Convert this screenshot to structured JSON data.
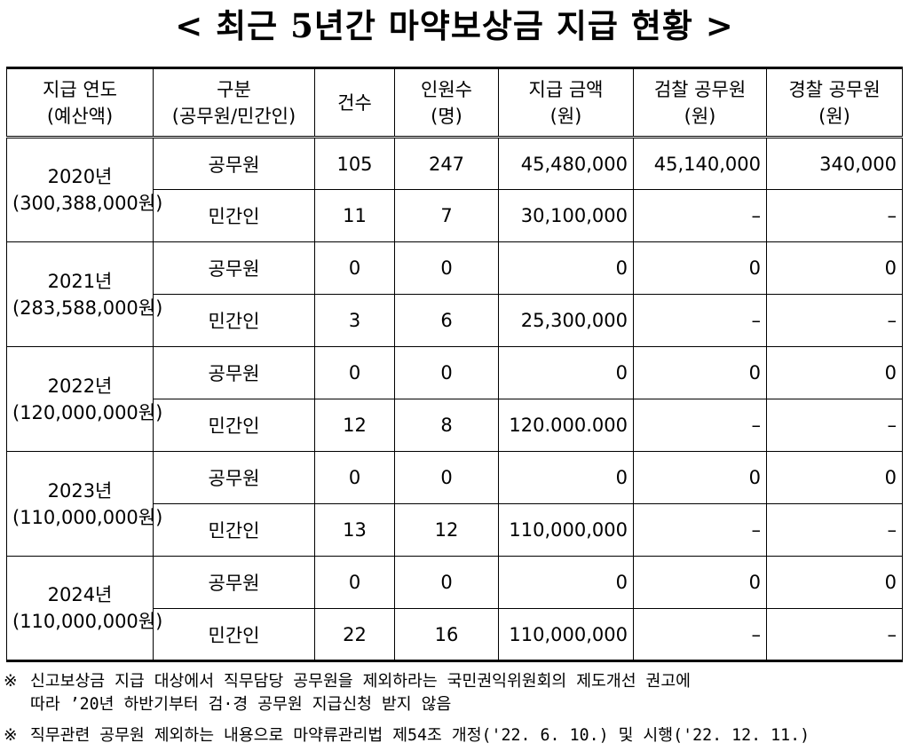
{
  "title": "< 최근 5년간 마약보상금 지급 현황 >",
  "headers": [
    {
      "line1": "지급 연도",
      "line2": "(예산액)"
    },
    {
      "line1": "구분",
      "line2": "(공무원/민간인)"
    },
    {
      "line1": "건수",
      "line2": ""
    },
    {
      "line1": "인원수",
      "line2": "(명)"
    },
    {
      "line1": "지급 금액",
      "line2": "(원)"
    },
    {
      "line1": "검찰 공무원",
      "line2": "(원)"
    },
    {
      "line1": "경찰 공무원",
      "line2": "(원)"
    }
  ],
  "years": [
    {
      "year": "2020년",
      "budget": "(300,388,000원)",
      "rows": [
        {
          "type": "공무원",
          "cases": "105",
          "people": "247",
          "amount": "45,480,000",
          "prosecution": "45,140,000",
          "police": "340,000"
        },
        {
          "type": "민간인",
          "cases": "11",
          "people": "7",
          "amount": "30,100,000",
          "prosecution": "–",
          "police": "–"
        }
      ]
    },
    {
      "year": "2021년",
      "budget": "(283,588,000원)",
      "rows": [
        {
          "type": "공무원",
          "cases": "0",
          "people": "0",
          "amount": "0",
          "prosecution": "0",
          "police": "0"
        },
        {
          "type": "민간인",
          "cases": "3",
          "people": "6",
          "amount": "25,300,000",
          "prosecution": "–",
          "police": "–"
        }
      ]
    },
    {
      "year": "2022년",
      "budget": "(120,000,000원)",
      "rows": [
        {
          "type": "공무원",
          "cases": "0",
          "people": "0",
          "amount": "0",
          "prosecution": "0",
          "police": "0"
        },
        {
          "type": "민간인",
          "cases": "12",
          "people": "8",
          "amount": "120.000.000",
          "prosecution": "–",
          "police": "–"
        }
      ]
    },
    {
      "year": "2023년",
      "budget": "(110,000,000원)",
      "rows": [
        {
          "type": "공무원",
          "cases": "0",
          "people": "0",
          "amount": "0",
          "prosecution": "0",
          "police": "0"
        },
        {
          "type": "민간인",
          "cases": "13",
          "people": "12",
          "amount": "110,000,000",
          "prosecution": "–",
          "police": "–"
        }
      ]
    },
    {
      "year": "2024년",
      "budget": "(110,000,000원)",
      "rows": [
        {
          "type": "공무원",
          "cases": "0",
          "people": "0",
          "amount": "0",
          "prosecution": "0",
          "police": "0"
        },
        {
          "type": "민간인",
          "cases": "22",
          "people": "16",
          "amount": "110,000,000",
          "prosecution": "–",
          "police": "–"
        }
      ]
    }
  ],
  "notes": [
    {
      "mark": "※",
      "line1": "신고보상금 지급 대상에서 직무담당 공무원을 제외하라는 국민권익위원회의 제도개선 권고에",
      "line2": "따라 ’20년 하반기부터 검·경 공무원 지급신청 받지 않음"
    },
    {
      "mark": "※",
      "line1": "직무관련 공무원 제외하는 내용으로 마약류관리법 제54조 개정('22. 6. 10.) 및 시행('22. 12. 11.)",
      "line2": ""
    }
  ]
}
